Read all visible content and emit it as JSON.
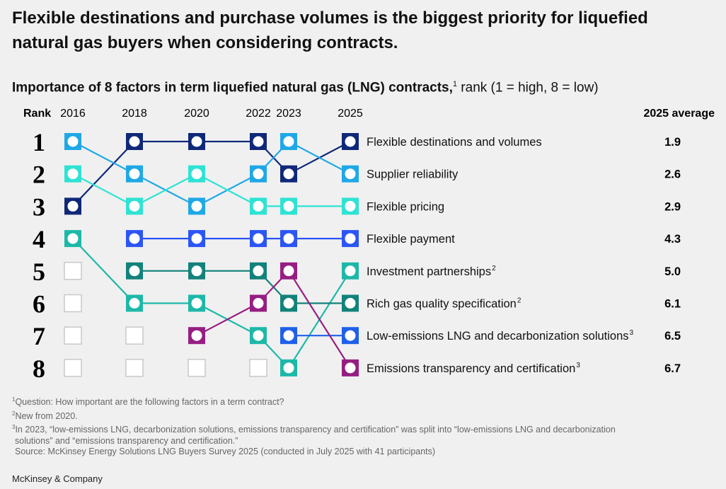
{
  "title": "Flexible destinations and purchase volumes is the biggest priority for liquefied natural gas buyers when considering contracts.",
  "subtitle": {
    "bold": "Importance of 8 factors in term liquefied natural gas (LNG) contracts,",
    "sup": "1",
    "rest": " rank (1 = high, 8 = low)"
  },
  "chart_data": {
    "type": "bump",
    "rank_header": "Rank",
    "average_header": "2025 average",
    "years": [
      "2016",
      "2018",
      "2020",
      "2022",
      "2023",
      "2025"
    ],
    "ranks": [
      "1",
      "2",
      "3",
      "4",
      "5",
      "6",
      "7",
      "8"
    ],
    "series": [
      {
        "name": "Flexible destinations and volumes",
        "sup": "",
        "average": "1.9",
        "color": "#0f2878",
        "ranks": [
          3,
          1,
          1,
          1,
          2,
          1
        ]
      },
      {
        "name": "Supplier reliability",
        "sup": "",
        "average": "2.6",
        "color": "#1fa8e6",
        "ranks": [
          1,
          2,
          3,
          2,
          1,
          2
        ]
      },
      {
        "name": "Flexible pricing",
        "sup": "",
        "average": "2.9",
        "color": "#2ee3d4",
        "ranks": [
          2,
          3,
          2,
          3,
          3,
          3
        ]
      },
      {
        "name": "Flexible payment",
        "sup": "",
        "average": "4.3",
        "color": "#2b55f5",
        "ranks": [
          null,
          4,
          4,
          4,
          4,
          4
        ]
      },
      {
        "name": "Investment partnerships",
        "sup": "2",
        "average": "5.0",
        "color": "#1db8a8",
        "ranks": [
          4,
          6,
          6,
          7,
          8,
          5
        ]
      },
      {
        "name": "Rich gas quality specification",
        "sup": "2",
        "average": "6.1",
        "color": "#12827a",
        "ranks": [
          null,
          5,
          5,
          5,
          6,
          6
        ]
      },
      {
        "name": "Low-emissions LNG and decarbonization solutions",
        "sup": "3",
        "average": "6.5",
        "color": "#1f60e8",
        "ranks": [
          null,
          null,
          null,
          null,
          7,
          7
        ]
      },
      {
        "name": "Emissions transparency and certification",
        "sup": "3",
        "average": "6.7",
        "color": "#961e82",
        "ranks": [
          null,
          null,
          7,
          6,
          5,
          8
        ]
      }
    ]
  },
  "footnotes": [
    {
      "sup": "1",
      "text": "Question: How important are the following factors in a term contract?"
    },
    {
      "sup": "2",
      "text": "New from 2020."
    },
    {
      "sup": "3",
      "text": "In 2023, “low-emissions LNG, decarbonization solutions, emissions transparency and certification” was split into “low-emissions LNG and decarbonization"
    },
    {
      "sup": "",
      "text": "solutions” and “emissions transparency and certification.”"
    },
    {
      "sup": "",
      "text": "Source: McKinsey Energy Solutions LNG Buyers Survey 2025 (conducted in July 2025 with 41 participants)"
    }
  ],
  "brand": "McKinsey & Company"
}
